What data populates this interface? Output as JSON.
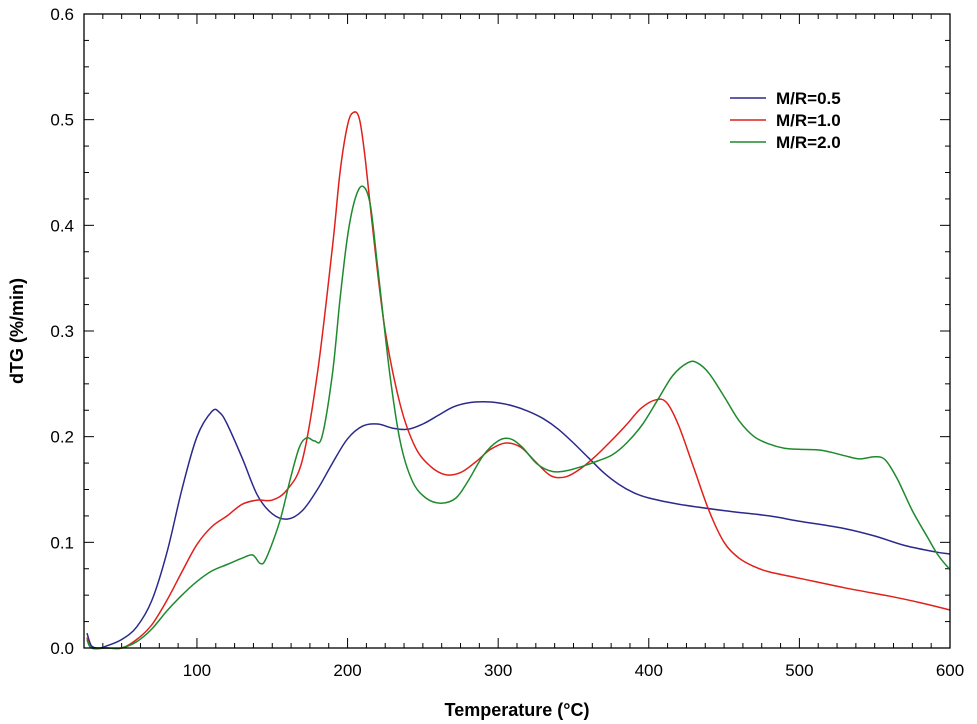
{
  "chart_data": {
    "type": "line",
    "xlabel": "Temperature (°C)",
    "ylabel": "dTG (%/min)",
    "xlim": [
      25,
      600
    ],
    "ylim": [
      0,
      0.6
    ],
    "xticks": [
      100,
      200,
      300,
      400,
      500,
      600
    ],
    "xtick_labels": [
      "100",
      "200",
      "300",
      "400",
      "500",
      "600"
    ],
    "yticks": [
      0.0,
      0.1,
      0.2,
      0.3,
      0.4,
      0.5,
      0.6
    ],
    "ytick_labels": [
      "0.0",
      "0.1",
      "0.2",
      "0.3",
      "0.4",
      "0.5",
      "0.6"
    ],
    "grid": false,
    "legend_position": "top-right",
    "series": [
      {
        "name": "M/R=0.5",
        "color": "#2a2a8c",
        "points": [
          [
            27,
            0.014
          ],
          [
            30,
            0.002
          ],
          [
            35,
            0.0
          ],
          [
            40,
            0.002
          ],
          [
            50,
            0.008
          ],
          [
            60,
            0.02
          ],
          [
            70,
            0.045
          ],
          [
            80,
            0.09
          ],
          [
            90,
            0.15
          ],
          [
            100,
            0.2
          ],
          [
            110,
            0.224
          ],
          [
            115,
            0.223
          ],
          [
            120,
            0.212
          ],
          [
            130,
            0.18
          ],
          [
            140,
            0.145
          ],
          [
            150,
            0.127
          ],
          [
            160,
            0.122
          ],
          [
            170,
            0.13
          ],
          [
            180,
            0.15
          ],
          [
            190,
            0.175
          ],
          [
            200,
            0.198
          ],
          [
            210,
            0.21
          ],
          [
            220,
            0.212
          ],
          [
            230,
            0.208
          ],
          [
            240,
            0.207
          ],
          [
            250,
            0.212
          ],
          [
            260,
            0.22
          ],
          [
            270,
            0.228
          ],
          [
            280,
            0.232
          ],
          [
            290,
            0.233
          ],
          [
            300,
            0.232
          ],
          [
            310,
            0.229
          ],
          [
            320,
            0.224
          ],
          [
            330,
            0.217
          ],
          [
            340,
            0.207
          ],
          [
            350,
            0.194
          ],
          [
            360,
            0.18
          ],
          [
            370,
            0.166
          ],
          [
            380,
            0.155
          ],
          [
            390,
            0.147
          ],
          [
            400,
            0.142
          ],
          [
            420,
            0.136
          ],
          [
            450,
            0.13
          ],
          [
            480,
            0.125
          ],
          [
            500,
            0.12
          ],
          [
            530,
            0.113
          ],
          [
            550,
            0.106
          ],
          [
            570,
            0.097
          ],
          [
            590,
            0.091
          ],
          [
            600,
            0.089
          ]
        ]
      },
      {
        "name": "M/R=1.0",
        "color": "#e0201a",
        "points": [
          [
            27,
            0.01
          ],
          [
            30,
            0.0
          ],
          [
            40,
            0.0
          ],
          [
            50,
            0.0
          ],
          [
            60,
            0.008
          ],
          [
            70,
            0.022
          ],
          [
            80,
            0.045
          ],
          [
            90,
            0.072
          ],
          [
            100,
            0.098
          ],
          [
            110,
            0.115
          ],
          [
            120,
            0.125
          ],
          [
            130,
            0.136
          ],
          [
            140,
            0.14
          ],
          [
            150,
            0.14
          ],
          [
            160,
            0.15
          ],
          [
            170,
            0.178
          ],
          [
            180,
            0.26
          ],
          [
            190,
            0.38
          ],
          [
            195,
            0.45
          ],
          [
            200,
            0.495
          ],
          [
            204,
            0.507
          ],
          [
            208,
            0.5
          ],
          [
            212,
            0.46
          ],
          [
            218,
            0.38
          ],
          [
            225,
            0.3
          ],
          [
            235,
            0.23
          ],
          [
            245,
            0.19
          ],
          [
            255,
            0.172
          ],
          [
            265,
            0.164
          ],
          [
            275,
            0.166
          ],
          [
            285,
            0.176
          ],
          [
            295,
            0.188
          ],
          [
            305,
            0.194
          ],
          [
            315,
            0.19
          ],
          [
            325,
            0.176
          ],
          [
            335,
            0.163
          ],
          [
            345,
            0.162
          ],
          [
            355,
            0.17
          ],
          [
            365,
            0.182
          ],
          [
            375,
            0.196
          ],
          [
            385,
            0.211
          ],
          [
            395,
            0.227
          ],
          [
            405,
            0.235
          ],
          [
            412,
            0.232
          ],
          [
            420,
            0.21
          ],
          [
            430,
            0.17
          ],
          [
            440,
            0.13
          ],
          [
            450,
            0.1
          ],
          [
            460,
            0.085
          ],
          [
            470,
            0.077
          ],
          [
            480,
            0.072
          ],
          [
            500,
            0.066
          ],
          [
            530,
            0.057
          ],
          [
            560,
            0.049
          ],
          [
            580,
            0.043
          ],
          [
            600,
            0.036
          ]
        ]
      },
      {
        "name": "M/R=2.0",
        "color": "#1e8a2e",
        "points": [
          [
            27,
            0.008
          ],
          [
            30,
            0.0
          ],
          [
            40,
            0.0
          ],
          [
            50,
            0.0
          ],
          [
            60,
            0.006
          ],
          [
            70,
            0.018
          ],
          [
            80,
            0.035
          ],
          [
            90,
            0.05
          ],
          [
            100,
            0.063
          ],
          [
            110,
            0.073
          ],
          [
            120,
            0.079
          ],
          [
            130,
            0.085
          ],
          [
            137,
            0.088
          ],
          [
            142,
            0.08
          ],
          [
            146,
            0.085
          ],
          [
            155,
            0.12
          ],
          [
            162,
            0.16
          ],
          [
            168,
            0.19
          ],
          [
            173,
            0.199
          ],
          [
            178,
            0.196
          ],
          [
            183,
            0.2
          ],
          [
            190,
            0.26
          ],
          [
            195,
            0.33
          ],
          [
            200,
            0.39
          ],
          [
            205,
            0.425
          ],
          [
            210,
            0.437
          ],
          [
            215,
            0.42
          ],
          [
            220,
            0.36
          ],
          [
            228,
            0.26
          ],
          [
            235,
            0.195
          ],
          [
            243,
            0.158
          ],
          [
            252,
            0.142
          ],
          [
            262,
            0.137
          ],
          [
            272,
            0.142
          ],
          [
            280,
            0.158
          ],
          [
            290,
            0.182
          ],
          [
            300,
            0.196
          ],
          [
            308,
            0.198
          ],
          [
            316,
            0.19
          ],
          [
            326,
            0.174
          ],
          [
            336,
            0.167
          ],
          [
            346,
            0.168
          ],
          [
            356,
            0.172
          ],
          [
            366,
            0.177
          ],
          [
            376,
            0.183
          ],
          [
            386,
            0.195
          ],
          [
            396,
            0.212
          ],
          [
            406,
            0.235
          ],
          [
            416,
            0.258
          ],
          [
            426,
            0.27
          ],
          [
            432,
            0.27
          ],
          [
            440,
            0.26
          ],
          [
            450,
            0.238
          ],
          [
            460,
            0.215
          ],
          [
            470,
            0.2
          ],
          [
            480,
            0.193
          ],
          [
            490,
            0.189
          ],
          [
            500,
            0.188
          ],
          [
            515,
            0.187
          ],
          [
            530,
            0.182
          ],
          [
            540,
            0.179
          ],
          [
            550,
            0.181
          ],
          [
            557,
            0.178
          ],
          [
            565,
            0.16
          ],
          [
            575,
            0.13
          ],
          [
            585,
            0.105
          ],
          [
            592,
            0.088
          ],
          [
            600,
            0.074
          ]
        ]
      }
    ]
  }
}
